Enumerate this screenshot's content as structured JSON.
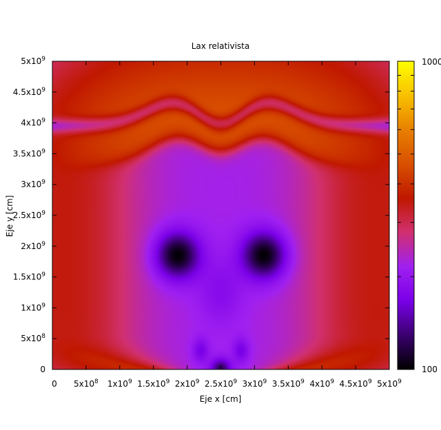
{
  "chart_data": {
    "type": "heatmap",
    "title": "Lax relativista",
    "xlabel": "Eje x [cm]",
    "ylabel": "Eje y [cm]",
    "xlim": [
      0,
      5000000000
    ],
    "ylim": [
      0,
      5000000000
    ],
    "x_ticks": [
      {
        "value": 0,
        "mant": "0",
        "exp": ""
      },
      {
        "value": 500000000,
        "mant": "5x10",
        "exp": "8"
      },
      {
        "value": 1000000000,
        "mant": "1x10",
        "exp": "9"
      },
      {
        "value": 1500000000,
        "mant": "1.5x10",
        "exp": "9"
      },
      {
        "value": 2000000000,
        "mant": "2x10",
        "exp": "9"
      },
      {
        "value": 2500000000,
        "mant": "2.5x10",
        "exp": "9"
      },
      {
        "value": 3000000000,
        "mant": "3x10",
        "exp": "9"
      },
      {
        "value": 3500000000,
        "mant": "3.5x10",
        "exp": "9"
      },
      {
        "value": 4000000000,
        "mant": "4x10",
        "exp": "9"
      },
      {
        "value": 4500000000,
        "mant": "4.5x10",
        "exp": "9"
      },
      {
        "value": 5000000000,
        "mant": "5x10",
        "exp": "9"
      }
    ],
    "y_ticks": [
      {
        "value": 0,
        "mant": "0",
        "exp": ""
      },
      {
        "value": 500000000,
        "mant": "5x10",
        "exp": "8"
      },
      {
        "value": 1000000000,
        "mant": "1x10",
        "exp": "9"
      },
      {
        "value": 1500000000,
        "mant": "1.5x10",
        "exp": "9"
      },
      {
        "value": 2000000000,
        "mant": "2x10",
        "exp": "9"
      },
      {
        "value": 2500000000,
        "mant": "2.5x10",
        "exp": "9"
      },
      {
        "value": 3000000000,
        "mant": "3x10",
        "exp": "9"
      },
      {
        "value": 3500000000,
        "mant": "3.5x10",
        "exp": "9"
      },
      {
        "value": 4000000000,
        "mant": "4x10",
        "exp": "9"
      },
      {
        "value": 4500000000,
        "mant": "4.5x10",
        "exp": "9"
      },
      {
        "value": 5000000000,
        "mant": "5x10",
        "exp": "9"
      }
    ],
    "colorbar": {
      "min_label": "100",
      "max_label": "1000",
      "scale": "log",
      "range": [
        100,
        1000
      ],
      "palette": [
        "#000000",
        "#3b0070",
        "#7a00e8",
        "#a020f0",
        "#d13070",
        "#c01800",
        "#d85000",
        "#e88000",
        "#f8c000",
        "#ffff00"
      ]
    },
    "grid": false,
    "legend": "none"
  }
}
